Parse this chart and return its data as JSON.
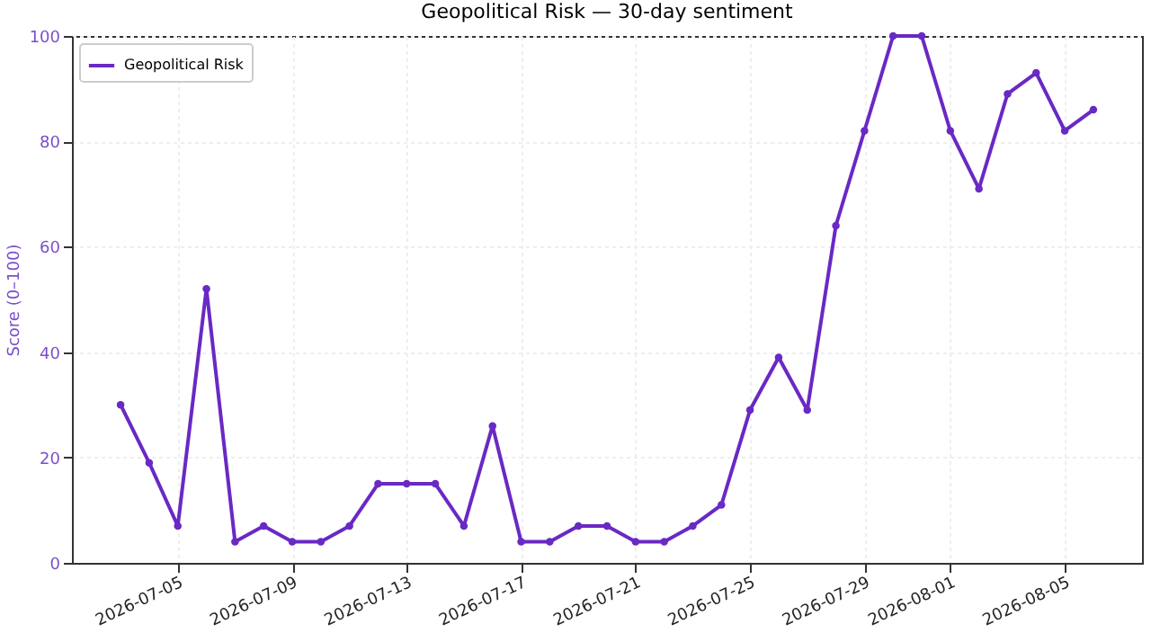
{
  "chart_data": {
    "type": "line",
    "title": "Geopolitical Risk — 30-day sentiment",
    "ylabel": "Score (0–100)",
    "x": [
      "2026-07-03",
      "2026-07-04",
      "2026-07-05",
      "2026-07-06",
      "2026-07-07",
      "2026-07-08",
      "2026-07-09",
      "2026-07-10",
      "2026-07-11",
      "2026-07-12",
      "2026-07-13",
      "2026-07-14",
      "2026-07-15",
      "2026-07-16",
      "2026-07-17",
      "2026-07-18",
      "2026-07-19",
      "2026-07-20",
      "2026-07-21",
      "2026-07-22",
      "2026-07-23",
      "2026-07-24",
      "2026-07-25",
      "2026-07-26",
      "2026-07-27",
      "2026-07-28",
      "2026-07-29",
      "2026-07-30",
      "2026-07-31",
      "2026-08-01",
      "2026-08-02",
      "2026-08-03",
      "2026-08-04",
      "2026-08-05",
      "2026-08-06"
    ],
    "series": [
      {
        "name": "Geopolitical Risk",
        "color": "#6929c4",
        "values": [
          30,
          19,
          7,
          52,
          4,
          7,
          4,
          4,
          7,
          15,
          15,
          15,
          7,
          26,
          4,
          4,
          7,
          7,
          4,
          4,
          7,
          11,
          29,
          39,
          29,
          64,
          82,
          100,
          100,
          82,
          71,
          89,
          93,
          82,
          86
        ]
      }
    ],
    "xlim": [
      "2026-07-01T07:12",
      "2026-08-07T16:48"
    ],
    "xticks": [
      "2026-07-05",
      "2026-07-09",
      "2026-07-13",
      "2026-07-17",
      "2026-07-21",
      "2026-07-25",
      "2026-07-29",
      "2026-08-01",
      "2026-08-05"
    ],
    "ylim": [
      0,
      100
    ],
    "yticks": [
      0,
      20,
      40,
      60,
      80,
      100
    ],
    "grid": true,
    "legend": "top left",
    "marker": "circle",
    "line_style": "solid"
  }
}
